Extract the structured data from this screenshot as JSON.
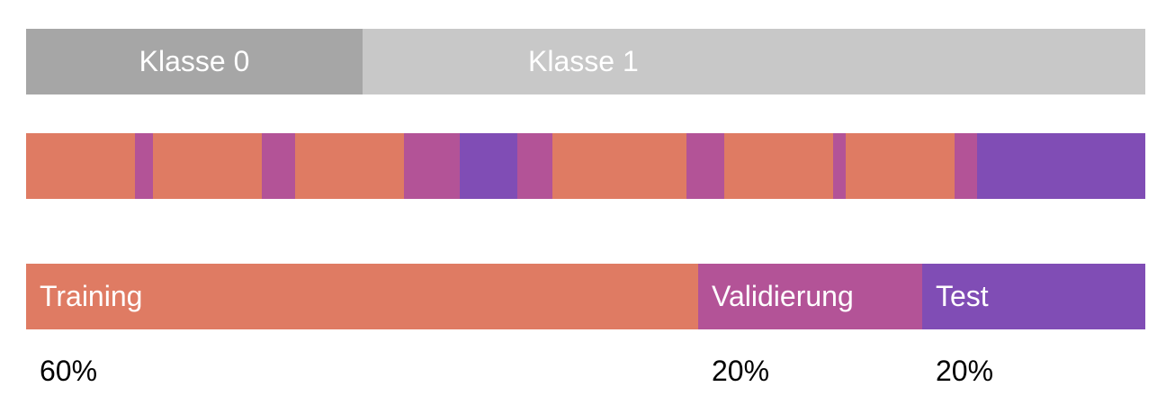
{
  "colors": {
    "class_0": "#a6a6a6",
    "class_1": "#c8c8c8",
    "training": "#df7b63",
    "validation": "#b35397",
    "test": "#804db5"
  },
  "classes": [
    {
      "label": "Klasse 0"
    },
    {
      "label": "Klasse 1"
    }
  ],
  "strip": [
    {
      "set": "training",
      "share": 0.0973
    },
    {
      "set": "validation",
      "share": 0.0161
    },
    {
      "set": "training",
      "share": 0.0973
    },
    {
      "set": "validation",
      "share": 0.0297
    },
    {
      "set": "training",
      "share": 0.0973
    },
    {
      "set": "validation",
      "share": 0.0498
    },
    {
      "set": "test",
      "share": 0.0514
    },
    {
      "set": "validation",
      "share": 0.0313
    },
    {
      "set": "training",
      "share": 0.1198
    },
    {
      "set": "validation",
      "share": 0.0338
    },
    {
      "set": "training",
      "share": 0.0973
    },
    {
      "set": "validation",
      "share": 0.0113
    },
    {
      "set": "training",
      "share": 0.0973
    },
    {
      "set": "validation",
      "share": 0.0201
    },
    {
      "set": "test",
      "share": 0.1504
    }
  ],
  "split": {
    "training": {
      "label": "Training",
      "percent": "60%"
    },
    "validation": {
      "label": "Validierung",
      "percent": "20%"
    },
    "test": {
      "label": "Test",
      "percent": "20%"
    }
  }
}
